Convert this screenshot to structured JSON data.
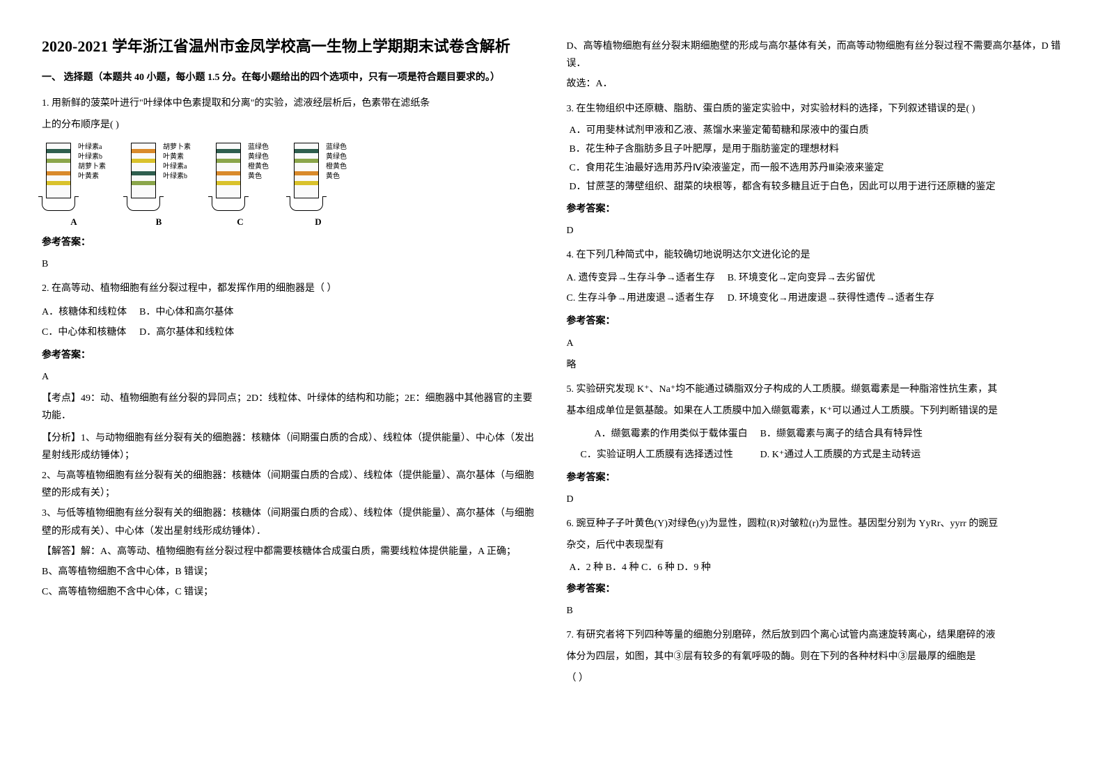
{
  "title": "2020-2021 学年浙江省温州市金凤学校高一生物上学期期末试卷含解析",
  "section1_head": "一、 选择题（本题共 40 小题，每小题 1.5 分。在每小题给出的四个选项中，只有一项是符合题目要求的。）",
  "ans_label": "参考答案：",
  "q1": {
    "text_l1": "1. 用新鲜的菠菜叶进行\"叶绿体中色素提取和分离\"的实验，滤液经层析后，色素带在滤纸条",
    "text_l2": "上的分布顺序是(    )",
    "diagram": {
      "letters": [
        "A",
        "B",
        "C",
        "D"
      ],
      "labels_sets": [
        [
          "叶绿素a",
          "叶绿素b",
          "胡萝卜素",
          "叶黄素"
        ],
        [
          "胡萝卜素",
          "叶黄素",
          "叶绿素a",
          "叶绿素b"
        ],
        [
          "蓝绿色",
          "黄绿色",
          "橙黄色",
          "黄色"
        ],
        [
          "蓝绿色",
          "黄绿色",
          "橙黄色",
          "黄色"
        ]
      ],
      "band_positions": [
        8,
        22,
        40,
        54
      ],
      "band_classes": {
        "A": [
          "c-bluegreen",
          "c-yellowgreen",
          "c-orange",
          "c-yellow"
        ],
        "B": [
          "c-orange",
          "c-yellow",
          "c-bluegreen",
          "c-yellowgreen"
        ],
        "C": [
          "c-bluegreen",
          "c-yellowgreen",
          "c-orange",
          "c-yellow"
        ],
        "D": [
          "c-bluegreen",
          "c-yellowgreen",
          "c-orange",
          "c-yellow"
        ]
      }
    },
    "ans": "B"
  },
  "q2": {
    "text": "2. 在高等动、植物细胞有丝分裂过程中，都发挥作用的细胞器是（    ）",
    "opts": {
      "A": "A．核糖体和线粒体",
      "B": "B．中心体和高尔基体",
      "C": "C．中心体和核糖体",
      "D": "D．高尔基体和线粒体"
    },
    "ans": "A",
    "analysis_head": "【考点】49：动、植物细胞有丝分裂的异同点；2D：线粒体、叶绿体的结构和功能；2E：细胞器中其他器官的主要功能．",
    "fenxi": "【分析】1、与动物细胞有丝分裂有关的细胞器：核糖体（间期蛋白质的合成）、线粒体（提供能量）、中心体（发出星射线形成纺锤体）；",
    "p2": "2、与高等植物细胞有丝分裂有关的细胞器：核糖体（间期蛋白质的合成）、线粒体（提供能量）、高尔基体（与细胞壁的形成有关）；",
    "p3": "3、与低等植物细胞有丝分裂有关的细胞器：核糖体（间期蛋白质的合成）、线粒体（提供能量）、高尔基体（与细胞壁的形成有关）、中心体（发出星射线形成纺锤体）．",
    "jieda": "【解答】解：A、高等动、植物细胞有丝分裂过程中都需要核糖体合成蛋白质，需要线粒体提供能量，A 正确；",
    "jB": "B、高等植物细胞不含中心体，B 错误；",
    "jC": "C、高等植物细胞不含中心体，C 错误；",
    "jD": "D、高等植物细胞有丝分裂末期细胞壁的形成与高尔基体有关，而高等动物细胞有丝分裂过程不需要高尔基体，D 错误．",
    "gx": "故选：A．"
  },
  "q3": {
    "text": "3. 在生物组织中还原糖、脂肪、蛋白质的鉴定实验中，对实验材料的选择，下列叙述错误的是(  )",
    "A": "A．可用斐林试剂甲液和乙液、蒸馏水来鉴定葡萄糖和尿液中的蛋白质",
    "B": "B．花生种子含脂肪多且子叶肥厚，是用于脂肪鉴定的理想材料",
    "C": "C．食用花生油最好选用苏丹Ⅳ染液鉴定，而一般不选用苏丹Ⅲ染液来鉴定",
    "D": "D．甘蔗茎的薄壁组织、甜菜的块根等，都含有较多糖且近于白色，因此可以用于进行还原糖的鉴定",
    "ans": "D"
  },
  "q4": {
    "text": "4. 在下列几种简式中，能较确切地说明达尔文进化论的是",
    "A": "A. 遗传变异→生存斗争→适者生存",
    "B": "B. 环境变化→定向变异→去劣留优",
    "C": "C. 生存斗争→用进废退→适者生存",
    "D": "D. 环境变化→用进废退→获得性遗传→适者生存",
    "ans": "A",
    "lue": "略"
  },
  "q5": {
    "text_l1": "5. 实验研究发现 K⁺、Na⁺均不能通过磷脂双分子构成的人工质膜。缬氨霉素是一种脂溶性抗生素，其",
    "text_l2": "基本组成单位是氨基酸。如果在人工质膜中加入缬氨霉素，K⁺可以通过人工质膜。下列判断错误的是",
    "A": "A．缬氨霉素的作用类似于载体蛋白",
    "B": "B．缬氨霉素与离子的结合具有特异性",
    "C": "C．实验证明人工质膜有选择透过性",
    "D": "D. K⁺通过人工质膜的方式是主动转运",
    "ans": "D"
  },
  "q6": {
    "text_l1": "6. 豌豆种子子叶黄色(Y)对绿色(y)为显性，圆粒(R)对皱粒(r)为显性。基因型分别为 YyRr、yyrr 的豌豆",
    "text_l2": "杂交，后代中表现型有",
    "opts": "A．2 种        B．4 种        C．6 种        D．9 种",
    "ans": "B"
  },
  "q7": {
    "text_l1": "7. 有研究者将下列四种等量的细胞分别磨碎，然后放到四个离心试管内高速旋转离心，结果磨碎的液",
    "text_l2": "体分为四层，如图，其中③层有较多的有氧呼吸的酶。则在下列的各种材料中③层最厚的细胞是",
    "text_l3": "（    ）"
  }
}
